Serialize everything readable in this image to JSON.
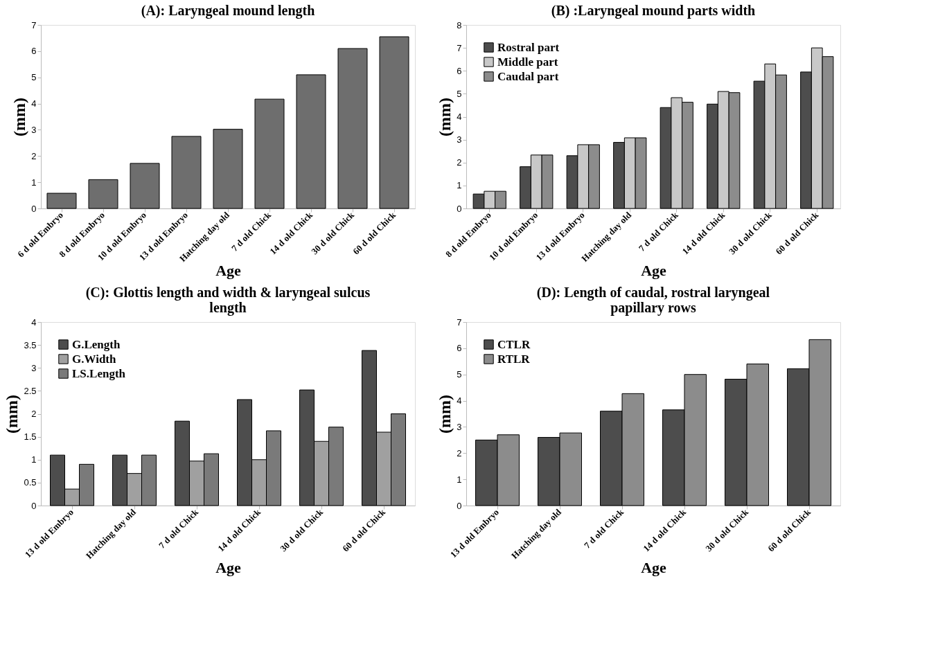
{
  "chart_data": [
    {
      "type": "bar",
      "title": "(A): Laryngeal mound length",
      "xlabel": "Age",
      "ylabel": "(mm)",
      "categories": [
        "6 d old Embryo",
        "8 d old Embryo",
        "10 d old Embryo",
        "13 d old Embryo",
        "Hatching day old",
        "7 d old Chick",
        "14 d old Chick",
        "30 d old Chick",
        "60 d old Chick"
      ],
      "values": [
        0.58,
        1.1,
        1.72,
        2.75,
        3.02,
        4.17,
        5.1,
        6.1,
        6.55
      ],
      "color": "#6e6e6e",
      "ylim": [
        0,
        7
      ],
      "yticks": [
        0,
        1,
        2,
        3,
        4,
        5,
        6,
        7
      ],
      "grid": false,
      "legend": false
    },
    {
      "type": "bar",
      "title": "(B) :Laryngeal mound parts width",
      "xlabel": "Age",
      "ylabel": "(mm)",
      "categories": [
        "8 d old Embryo",
        "10 d old Embryo",
        "13 d old Embryo",
        "Hatching day old",
        "7 d old Chick",
        "14 d old Chick",
        "30 d old Chick",
        "60 d old Chick"
      ],
      "series": [
        {
          "name": "Rostral part",
          "color": "#4d4d4d",
          "values": [
            0.63,
            1.82,
            2.3,
            2.88,
            4.4,
            4.55,
            5.55,
            5.95
          ]
        },
        {
          "name": "Middle part",
          "color": "#c8c8c8",
          "values": [
            0.75,
            2.33,
            2.78,
            3.08,
            4.83,
            5.1,
            6.3,
            7.0
          ]
        },
        {
          "name": "Caudal part",
          "color": "#8c8c8c",
          "values": [
            0.75,
            2.33,
            2.78,
            3.08,
            4.63,
            5.05,
            5.82,
            6.62
          ]
        }
      ],
      "ylim": [
        0,
        8
      ],
      "yticks": [
        0,
        1,
        2,
        3,
        4,
        5,
        6,
        7,
        8
      ],
      "grid": false,
      "legend": "top left"
    },
    {
      "type": "bar",
      "title": "(C): Glottis length and width & laryngeal sulcus length",
      "xlabel": "Age",
      "ylabel": "(mm)",
      "categories": [
        "13 d old Embryo",
        "Hatching day old",
        "7 d old Chick",
        "14 d old Chick",
        "30 d old Chick",
        "60 d old Chick"
      ],
      "series": [
        {
          "name": "G.Length",
          "color": "#4d4d4d",
          "values": [
            1.1,
            1.1,
            1.84,
            2.31,
            2.52,
            3.38
          ]
        },
        {
          "name": "G.Width",
          "color": "#a0a0a0",
          "values": [
            0.36,
            0.7,
            0.97,
            1.0,
            1.4,
            1.6
          ]
        },
        {
          "name": "LS.Length",
          "color": "#7a7a7a",
          "values": [
            0.9,
            1.1,
            1.13,
            1.63,
            1.71,
            2.0
          ]
        }
      ],
      "ylim": [
        0,
        4
      ],
      "yticks": [
        0,
        0.5,
        1,
        1.5,
        2,
        2.5,
        3,
        3.5,
        4
      ],
      "grid": false,
      "legend": "top left"
    },
    {
      "type": "bar",
      "title": "(D): Length of caudal, rostral laryngeal papillary rows",
      "xlabel": "Age",
      "ylabel": "(mm)",
      "categories": [
        "13 d old Embryo",
        "Hatching day old",
        "7 d old Chick",
        "14 d old Chick",
        "30 d old Chick",
        "60 d old Chick"
      ],
      "series": [
        {
          "name": "CTLR",
          "color": "#4d4d4d",
          "values": [
            2.5,
            2.6,
            3.6,
            3.65,
            4.82,
            5.22
          ]
        },
        {
          "name": "RTLR",
          "color": "#8c8c8c",
          "values": [
            2.7,
            2.77,
            4.27,
            5.0,
            5.4,
            6.33
          ]
        }
      ],
      "ylim": [
        0,
        7
      ],
      "yticks": [
        0,
        1,
        2,
        3,
        4,
        5,
        6,
        7
      ],
      "grid": false,
      "legend": "top left"
    }
  ]
}
